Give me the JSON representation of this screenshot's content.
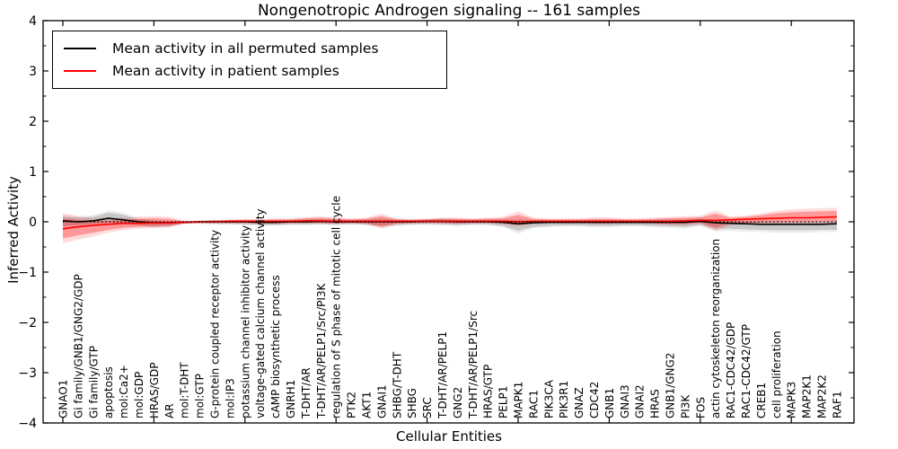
{
  "header": {
    "title": "Nongenotropic Androgen signaling -- 161 samples"
  },
  "chart_data": {
    "type": "line",
    "title": "Nongenotropic Androgen signaling -- 161 samples",
    "xlabel": "Cellular Entities",
    "ylabel": "Inferred Activity",
    "ylim": [
      -4,
      4
    ],
    "grid": false,
    "legend_position": "upper left",
    "zero_line": true,
    "yticks": {
      "values": [
        4,
        3,
        2,
        1,
        0,
        -1,
        -2,
        -3,
        -4
      ],
      "labels": [
        "4",
        "3",
        "2",
        "1",
        "0",
        "−1",
        "−2",
        "−3",
        "−4"
      ]
    },
    "xtick_indices": [
      0,
      6,
      12,
      18,
      24,
      30,
      36,
      42,
      48
    ],
    "categories": [
      "GNAO1",
      "Gi family/GNB1/GNG2/GDP",
      "Gi family/GTP",
      "apoptosis",
      "mol:Ca2+",
      "mol:GDP",
      "HRAS/GDP",
      "AR",
      "mol:T-DHT",
      "mol:GTP",
      "G-protein coupled receptor activity",
      "mol:IP3",
      "potassium channel inhibitor activity",
      "voltage-gated calcium channel activity",
      "cAMP biosynthetic process",
      "GNRH1",
      "T-DHT/AR",
      "T-DHT/AR/PELP1/Src/PI3K",
      "regulation of S phase of mitotic cell cycle",
      "PTK2",
      "AKT1",
      "GNAI1",
      "SHBG/T-DHT",
      "SHBG",
      "SRC",
      "T-DHT/AR/PELP1",
      "GNG2",
      "T-DHT/AR/PELP1/Src",
      "HRAS/GTP",
      "PELP1",
      "MAPK1",
      "RAC1",
      "PIK3CA",
      "PIK3R1",
      "GNAZ",
      "CDC42",
      "GNB1",
      "GNAI3",
      "GNAI2",
      "HRAS",
      "GNB1/GNG2",
      "PI3K",
      "FOS",
      "actin cytoskeleton reorganization",
      "RAC1-CDC42/GDP",
      "RAC1-CDC42/GTP",
      "CREB1",
      "cell proliferation",
      "MAPK3",
      "MAP2K1",
      "MAP2K2",
      "RAF1"
    ],
    "series": [
      {
        "name": "Mean activity in all permuted samples",
        "color": "#000000",
        "values": [
          0.02,
          0.0,
          0.02,
          0.07,
          0.04,
          0.0,
          -0.02,
          -0.02,
          -0.01,
          0.0,
          0.0,
          0.0,
          0.0,
          -0.01,
          -0.01,
          0.0,
          0.0,
          0.01,
          0.0,
          0.0,
          0.0,
          0.0,
          0.0,
          0.0,
          0.01,
          0.01,
          0.0,
          0.0,
          0.0,
          -0.01,
          -0.04,
          -0.02,
          -0.01,
          -0.01,
          -0.01,
          -0.01,
          -0.01,
          -0.01,
          -0.01,
          -0.01,
          -0.01,
          -0.01,
          0.01,
          -0.02,
          -0.03,
          -0.04,
          -0.05,
          -0.05,
          -0.05,
          -0.05,
          -0.05,
          -0.04
        ]
      },
      {
        "name": "Mean activity in patient samples",
        "color": "#ff0000",
        "values": [
          -0.14,
          -0.1,
          -0.07,
          -0.05,
          -0.03,
          -0.03,
          -0.02,
          -0.02,
          -0.01,
          0.0,
          0.0,
          0.01,
          0.01,
          0.01,
          0.01,
          0.01,
          0.02,
          0.02,
          0.01,
          0.01,
          0.01,
          0.01,
          0.01,
          0.01,
          0.01,
          0.01,
          0.01,
          0.01,
          0.01,
          0.01,
          0.0,
          0.01,
          0.01,
          0.01,
          0.01,
          0.01,
          0.01,
          0.01,
          0.01,
          0.01,
          0.01,
          0.02,
          0.03,
          0.03,
          0.04,
          0.05,
          0.06,
          0.07,
          0.08,
          0.08,
          0.09,
          0.1
        ]
      }
    ],
    "bands": [
      {
        "name": "permuted-band",
        "series_index": 0,
        "color": "#888888",
        "opacity": 0.35,
        "outer_opacity": 0.16,
        "outer_scale": 1.4,
        "upper": [
          0.1,
          0.08,
          0.1,
          0.18,
          0.14,
          0.05,
          0.02,
          0.01,
          0.01,
          0.02,
          0.03,
          0.03,
          0.03,
          0.02,
          0.02,
          0.03,
          0.04,
          0.05,
          0.04,
          0.03,
          0.04,
          0.05,
          0.04,
          0.03,
          0.04,
          0.05,
          0.04,
          0.04,
          0.04,
          0.04,
          0.03,
          0.02,
          0.02,
          0.02,
          0.02,
          0.03,
          0.03,
          0.02,
          0.02,
          0.03,
          0.04,
          0.04,
          0.06,
          0.02,
          0.01,
          0.0,
          0.0,
          0.0,
          0.0,
          0.0,
          0.0,
          0.01
        ],
        "lower": [
          -0.08,
          -0.06,
          -0.04,
          -0.02,
          -0.03,
          -0.06,
          -0.09,
          -0.08,
          -0.03,
          -0.03,
          -0.04,
          -0.04,
          -0.05,
          -0.06,
          -0.06,
          -0.05,
          -0.05,
          -0.04,
          -0.05,
          -0.04,
          -0.05,
          -0.08,
          -0.06,
          -0.05,
          -0.04,
          -0.05,
          -0.06,
          -0.05,
          -0.05,
          -0.08,
          -0.18,
          -0.1,
          -0.08,
          -0.07,
          -0.07,
          -0.08,
          -0.08,
          -0.07,
          -0.07,
          -0.08,
          -0.09,
          -0.1,
          -0.06,
          -0.14,
          -0.14,
          -0.15,
          -0.16,
          -0.17,
          -0.17,
          -0.17,
          -0.16,
          -0.16
        ]
      },
      {
        "name": "patient-band",
        "series_index": 1,
        "color": "#ff0000",
        "opacity": 0.3,
        "outer_opacity": 0.14,
        "outer_scale": 1.5,
        "upper": [
          0.07,
          0.04,
          0.02,
          0.02,
          0.04,
          0.06,
          0.07,
          0.06,
          0.01,
          0.01,
          0.02,
          0.03,
          0.04,
          0.04,
          0.05,
          0.05,
          0.07,
          0.08,
          0.06,
          0.05,
          0.06,
          0.11,
          0.05,
          0.04,
          0.05,
          0.06,
          0.06,
          0.05,
          0.06,
          0.07,
          0.14,
          0.06,
          0.05,
          0.05,
          0.05,
          0.06,
          0.06,
          0.05,
          0.05,
          0.06,
          0.07,
          0.08,
          0.09,
          0.16,
          0.08,
          0.1,
          0.13,
          0.17,
          0.19,
          0.2,
          0.21,
          0.22
        ],
        "lower": [
          -0.33,
          -0.27,
          -0.22,
          -0.16,
          -0.12,
          -0.1,
          -0.09,
          -0.08,
          -0.03,
          -0.02,
          -0.02,
          -0.02,
          -0.02,
          -0.03,
          -0.03,
          -0.02,
          -0.02,
          -0.02,
          -0.03,
          -0.02,
          -0.03,
          -0.09,
          -0.03,
          -0.02,
          -0.02,
          -0.02,
          -0.03,
          -0.02,
          -0.02,
          -0.03,
          -0.06,
          -0.03,
          -0.02,
          -0.02,
          -0.02,
          -0.03,
          -0.03,
          -0.02,
          -0.02,
          -0.03,
          -0.04,
          -0.04,
          -0.02,
          -0.11,
          -0.03,
          -0.02,
          -0.01,
          0.0,
          0.0,
          0.0,
          0.01,
          0.01
        ]
      }
    ],
    "legend": [
      {
        "label": "Mean activity in all permuted samples",
        "color": "#000000"
      },
      {
        "label": "Mean activity in patient samples",
        "color": "#ff0000"
      }
    ]
  }
}
